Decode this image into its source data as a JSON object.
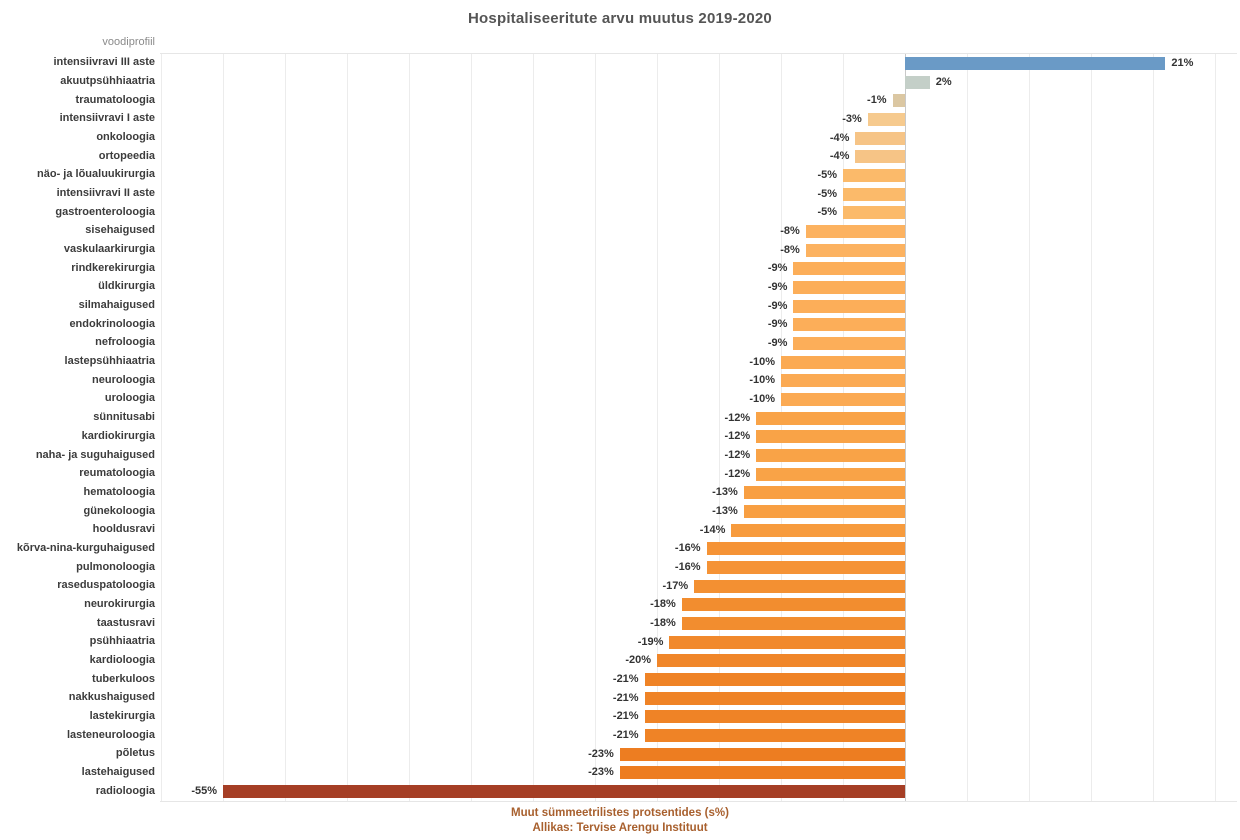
{
  "title": "Hospitaliseeritute arvu muutus 2019-2020",
  "column_header": "voodiprofiil",
  "caption": {
    "line1": "Muut sümmeetrilistes protsentides (s%)",
    "line2": "Allikas: Tervise Arengu Instituut"
  },
  "colors": {
    "positive_blue": "#6a9ac6",
    "neutral_gray": "#c4cfc8",
    "negative_extreme": "#a53e25",
    "gridline": "#ececec",
    "zero_line": "#c9c9c9",
    "title_text": "#555555",
    "label_text": "#3c3c3c",
    "header_text": "#8a8a8a",
    "caption_text": "#a8602e"
  },
  "chart_data": {
    "type": "bar",
    "orientation": "horizontal",
    "title": "Hospitaliseeritute arvu muutus 2019-2020",
    "xlabel": "Muut sümmeetrilistes protsentides (s%)",
    "source": "Allikas: Tervise Arengu Instituut",
    "xlim": [
      -60,
      25
    ],
    "grid_step": 5,
    "grid": true,
    "legend": false,
    "categories": [
      "intensiivravi III aste",
      "akuutpsühhiaatria",
      "traumatoloogia",
      "intensiivravi I aste",
      "onkoloogia",
      "ortopeedia",
      "näo- ja lõualuukirurgia",
      "intensiivravi II aste",
      "gastroenteroloogia",
      "sisehaigused",
      "vaskulaarkirurgia",
      "rindkerekirurgia",
      "üldkirurgia",
      "silmahaigused",
      "endokrinoloogia",
      "nefroloogia",
      "lastepsühhiaatria",
      "neuroloogia",
      "uroloogia",
      "sünnitusabi",
      "kardiokirurgia",
      "naha- ja suguhaigused",
      "reumatoloogia",
      "hematoloogia",
      "günekoloogia",
      "hooldusravi",
      "kõrva-nina-kurguhaigused",
      "pulmonoloogia",
      "raseduspatoloogia",
      "neurokirurgia",
      "taastusravi",
      "psühhiaatria",
      "kardioloogia",
      "tuberkuloos",
      "nakkushaigused",
      "lastekirurgia",
      "lasteneuroloogia",
      "põletus",
      "lastehaigused",
      "radioloogia"
    ],
    "values": [
      21,
      2,
      -1,
      -3,
      -4,
      -4,
      -5,
      -5,
      -5,
      -8,
      -8,
      -9,
      -9,
      -9,
      -9,
      -9,
      -10,
      -10,
      -10,
      -12,
      -12,
      -12,
      -12,
      -13,
      -13,
      -14,
      -16,
      -16,
      -17,
      -18,
      -18,
      -19,
      -20,
      -21,
      -21,
      -21,
      -21,
      -23,
      -23,
      -55
    ],
    "value_labels": [
      "21%",
      "2%",
      "-1%",
      "-3%",
      "-4%",
      "-4%",
      "-5%",
      "-5%",
      "-5%",
      "-8%",
      "-8%",
      "-9%",
      "-9%",
      "-9%",
      "-9%",
      "-9%",
      "-10%",
      "-10%",
      "-10%",
      "-12%",
      "-12%",
      "-12%",
      "-12%",
      "-13%",
      "-13%",
      "-14%",
      "-16%",
      "-16%",
      "-17%",
      "-18%",
      "-18%",
      "-19%",
      "-20%",
      "-21%",
      "-21%",
      "-21%",
      "-21%",
      "-23%",
      "-23%",
      "-55%"
    ],
    "bar_colors": [
      "#6a9ac6",
      "#c4cfc8",
      "#dbc7a2",
      "#f6ca8e",
      "#f6c486",
      "#f6c486",
      "#fbba6a",
      "#fbba6a",
      "#fbba6a",
      "#fcb260",
      "#fcb260",
      "#fcae59",
      "#fcae59",
      "#fcae59",
      "#fcae59",
      "#fcae59",
      "#fbaa53",
      "#fbaa53",
      "#fbaa53",
      "#f9a347",
      "#f9a347",
      "#f9a347",
      "#f9a347",
      "#f89f42",
      "#f89f42",
      "#f79b3d",
      "#f59336",
      "#f59336",
      "#f39032",
      "#f28d2f",
      "#f28d2f",
      "#f1892c",
      "#f08629",
      "#ef8326",
      "#ef8326",
      "#ef8326",
      "#ef8326",
      "#ed7d21",
      "#ed7d21",
      "#a53e25"
    ]
  }
}
